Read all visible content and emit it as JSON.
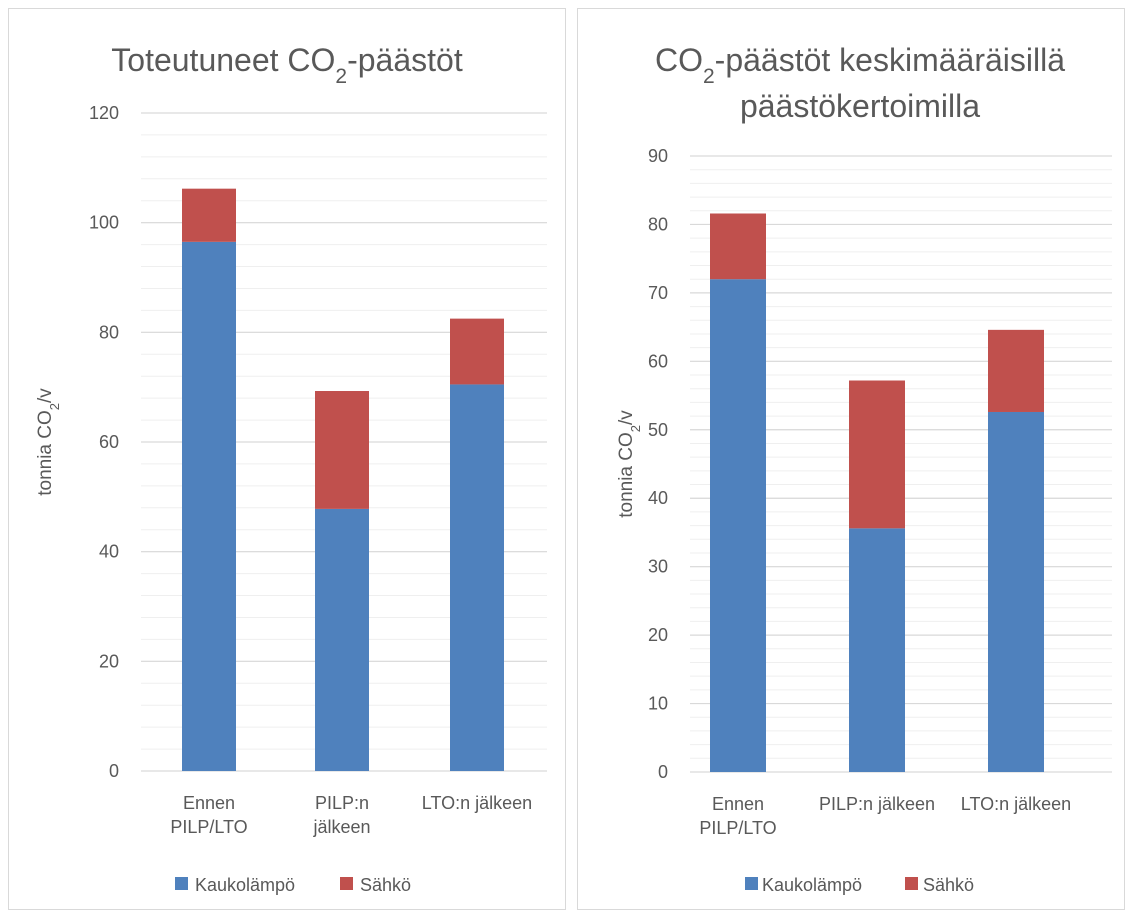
{
  "colors": {
    "kaukolampo": "#4f81bd",
    "sahko": "#c0504d",
    "major_grid": "#d9d9d9",
    "minor_grid": "#efefef",
    "text": "#595959"
  },
  "chart_data": [
    {
      "type": "bar",
      "stacked": true,
      "title": "Toteutuneet CO",
      "title_sub": "2",
      "title_suffix": "-päästöt",
      "title_line2": "",
      "ylabel": "tonnia CO",
      "ylabel_sub": "2",
      "ylabel_suffix": "/v",
      "ylim": [
        0,
        120
      ],
      "yticks": [
        0,
        20,
        40,
        60,
        80,
        100,
        120
      ],
      "minor_step": 4,
      "grid": true,
      "legend": "bottom",
      "categories": [
        "Ennen PILP/LTO",
        "PILP:n jälkeen",
        "LTO:n jälkeen"
      ],
      "category_lines": [
        [
          "Ennen",
          "PILP/LTO"
        ],
        [
          "PILP:n",
          "jälkeen"
        ],
        [
          "LTO:n jälkeen"
        ]
      ],
      "series": [
        {
          "name": "Kaukolämpö",
          "values": [
            96.5,
            47.8,
            70.5
          ]
        },
        {
          "name": "Sähkö",
          "values": [
            9.7,
            21.5,
            12.0
          ]
        }
      ]
    },
    {
      "type": "bar",
      "stacked": true,
      "title": "CO",
      "title_sub": "2",
      "title_suffix": "-päästöt keskimääräisillä",
      "title_line2": "päästökertoimilla",
      "ylabel": "tonnia CO",
      "ylabel_sub": "2",
      "ylabel_suffix": "/v",
      "ylim": [
        0,
        90
      ],
      "yticks": [
        0,
        10,
        20,
        30,
        40,
        50,
        60,
        70,
        80,
        90
      ],
      "minor_step": 2,
      "grid": true,
      "legend": "bottom",
      "categories": [
        "Ennen PILP/LTO",
        "PILP:n jälkeen",
        "LTO:n jälkeen"
      ],
      "category_lines": [
        [
          "Ennen",
          "PILP/LTO"
        ],
        [
          "PILP:n jälkeen"
        ],
        [
          "LTO:n jälkeen"
        ]
      ],
      "series": [
        {
          "name": "Kaukolämpö",
          "values": [
            72.0,
            35.6,
            52.6
          ]
        },
        {
          "name": "Sähkö",
          "values": [
            9.6,
            21.6,
            12.0
          ]
        }
      ]
    }
  ]
}
